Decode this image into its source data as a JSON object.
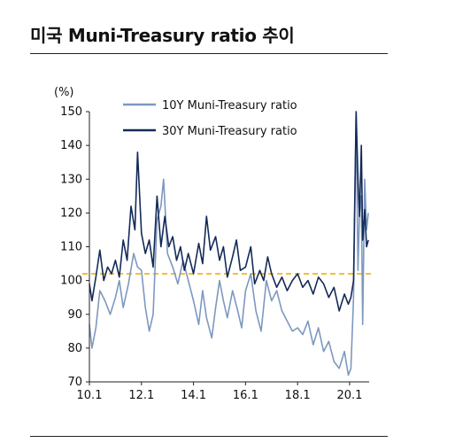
{
  "header": {
    "title": "미국 Muni-Treasury ratio 추이"
  },
  "colors": {
    "ten_year": "#7d98bf",
    "thirty_year": "#142b57",
    "reference": "#f1c232",
    "axis": "#222222"
  },
  "chart_data": {
    "type": "line",
    "title": "미국 Muni-Treasury ratio 추이",
    "xlabel": "",
    "ylabel": "(%)",
    "xlim": [
      2010.0,
      2020.75
    ],
    "ylim": [
      70,
      150
    ],
    "y_ticks": [
      70,
      80,
      90,
      100,
      110,
      120,
      130,
      140,
      150
    ],
    "x_ticks": [
      {
        "value": 2010.0,
        "label": "10.1"
      },
      {
        "value": 2012.0,
        "label": "12.1"
      },
      {
        "value": 2014.0,
        "label": "14.1"
      },
      {
        "value": 2016.0,
        "label": "16.1"
      },
      {
        "value": 2018.0,
        "label": "18.1"
      },
      {
        "value": 2020.0,
        "label": "20.1"
      }
    ],
    "reference_line": {
      "y": 102,
      "style": "dashed"
    },
    "legend_position": "top-left",
    "grid": false,
    "series": [
      {
        "name": "10Y Muni-Treasury ratio",
        "points": [
          [
            2010.0,
            87
          ],
          [
            2010.1,
            80
          ],
          [
            2010.25,
            86
          ],
          [
            2010.4,
            97
          ],
          [
            2010.6,
            94
          ],
          [
            2010.8,
            90
          ],
          [
            2011.0,
            95
          ],
          [
            2011.15,
            100
          ],
          [
            2011.3,
            92
          ],
          [
            2011.5,
            99
          ],
          [
            2011.7,
            108
          ],
          [
            2011.85,
            104
          ],
          [
            2012.0,
            103
          ],
          [
            2012.15,
            92
          ],
          [
            2012.3,
            85
          ],
          [
            2012.45,
            90
          ],
          [
            2012.6,
            118
          ],
          [
            2012.75,
            122
          ],
          [
            2012.85,
            130
          ],
          [
            2013.0,
            108
          ],
          [
            2013.2,
            104
          ],
          [
            2013.4,
            99
          ],
          [
            2013.6,
            106
          ],
          [
            2013.8,
            100
          ],
          [
            2014.0,
            94
          ],
          [
            2014.2,
            87
          ],
          [
            2014.35,
            97
          ],
          [
            2014.5,
            89
          ],
          [
            2014.7,
            83
          ],
          [
            2014.85,
            92
          ],
          [
            2015.0,
            100
          ],
          [
            2015.15,
            94
          ],
          [
            2015.3,
            89
          ],
          [
            2015.5,
            97
          ],
          [
            2015.7,
            91
          ],
          [
            2015.85,
            86
          ],
          [
            2016.0,
            97
          ],
          [
            2016.2,
            102
          ],
          [
            2016.4,
            91
          ],
          [
            2016.6,
            85
          ],
          [
            2016.8,
            100
          ],
          [
            2017.0,
            94
          ],
          [
            2017.2,
            97
          ],
          [
            2017.4,
            91
          ],
          [
            2017.6,
            88
          ],
          [
            2017.8,
            85
          ],
          [
            2018.0,
            86
          ],
          [
            2018.2,
            84
          ],
          [
            2018.4,
            88
          ],
          [
            2018.6,
            81
          ],
          [
            2018.8,
            86
          ],
          [
            2019.0,
            79
          ],
          [
            2019.2,
            82
          ],
          [
            2019.4,
            76
          ],
          [
            2019.6,
            74
          ],
          [
            2019.8,
            79
          ],
          [
            2019.95,
            72
          ],
          [
            2020.05,
            74
          ],
          [
            2020.15,
            95
          ],
          [
            2020.25,
            150
          ],
          [
            2020.32,
            103
          ],
          [
            2020.38,
            120
          ],
          [
            2020.45,
            125
          ],
          [
            2020.5,
            87
          ],
          [
            2020.58,
            130
          ],
          [
            2020.65,
            115
          ],
          [
            2020.72,
            120
          ]
        ]
      },
      {
        "name": "30Y Muni-Treasury ratio",
        "points": [
          [
            2010.0,
            99
          ],
          [
            2010.1,
            94
          ],
          [
            2010.25,
            101
          ],
          [
            2010.4,
            109
          ],
          [
            2010.55,
            100
          ],
          [
            2010.7,
            104
          ],
          [
            2010.85,
            102
          ],
          [
            2011.0,
            106
          ],
          [
            2011.15,
            101
          ],
          [
            2011.3,
            112
          ],
          [
            2011.45,
            106
          ],
          [
            2011.6,
            122
          ],
          [
            2011.75,
            115
          ],
          [
            2011.85,
            138
          ],
          [
            2012.0,
            114
          ],
          [
            2012.15,
            108
          ],
          [
            2012.3,
            112
          ],
          [
            2012.45,
            104
          ],
          [
            2012.6,
            125
          ],
          [
            2012.75,
            110
          ],
          [
            2012.9,
            119
          ],
          [
            2013.05,
            110
          ],
          [
            2013.2,
            113
          ],
          [
            2013.35,
            106
          ],
          [
            2013.5,
            110
          ],
          [
            2013.65,
            103
          ],
          [
            2013.8,
            108
          ],
          [
            2014.0,
            102
          ],
          [
            2014.2,
            111
          ],
          [
            2014.35,
            105
          ],
          [
            2014.5,
            119
          ],
          [
            2014.65,
            109
          ],
          [
            2014.85,
            113
          ],
          [
            2015.0,
            106
          ],
          [
            2015.15,
            110
          ],
          [
            2015.3,
            101
          ],
          [
            2015.5,
            107
          ],
          [
            2015.65,
            112
          ],
          [
            2015.8,
            103
          ],
          [
            2016.0,
            104
          ],
          [
            2016.2,
            110
          ],
          [
            2016.35,
            99
          ],
          [
            2016.55,
            103
          ],
          [
            2016.7,
            100
          ],
          [
            2016.85,
            107
          ],
          [
            2017.0,
            102
          ],
          [
            2017.2,
            98
          ],
          [
            2017.4,
            101
          ],
          [
            2017.6,
            97
          ],
          [
            2017.8,
            100
          ],
          [
            2018.0,
            102
          ],
          [
            2018.2,
            98
          ],
          [
            2018.4,
            100
          ],
          [
            2018.6,
            96
          ],
          [
            2018.8,
            101
          ],
          [
            2019.0,
            99
          ],
          [
            2019.2,
            95
          ],
          [
            2019.4,
            98
          ],
          [
            2019.6,
            91
          ],
          [
            2019.8,
            96
          ],
          [
            2019.95,
            93
          ],
          [
            2020.05,
            95
          ],
          [
            2020.15,
            100
          ],
          [
            2020.25,
            150
          ],
          [
            2020.32,
            130
          ],
          [
            2020.38,
            119
          ],
          [
            2020.45,
            140
          ],
          [
            2020.5,
            112
          ],
          [
            2020.58,
            121
          ],
          [
            2020.65,
            110
          ],
          [
            2020.72,
            112
          ]
        ]
      }
    ]
  }
}
